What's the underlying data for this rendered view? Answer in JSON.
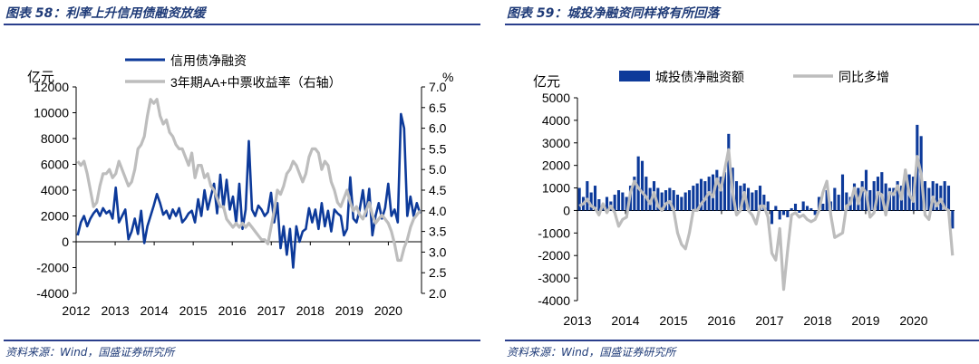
{
  "colors": {
    "primary": "#0d3a9a",
    "secondary": "#bdbdbd",
    "title": "#1f3b78",
    "rule": "#2a3e8c"
  },
  "left": {
    "title": "图表 58：利率上升信用债融资放缓",
    "source": "资料来源：Wind，国盛证券研究所",
    "chart_data": {
      "type": "line",
      "left_unit": "亿元",
      "right_unit": "%",
      "ylim_left": [
        -4000,
        12000
      ],
      "yticks_left": [
        "-4000",
        "-2000",
        "0",
        "2000",
        "4000",
        "6000",
        "8000",
        "10000",
        "12000"
      ],
      "ylim_right": [
        2.0,
        7.0
      ],
      "yticks_right": [
        "2.0",
        "2.5",
        "3.0",
        "3.5",
        "4.0",
        "4.5",
        "5.0",
        "5.5",
        "6.0",
        "6.5",
        "7.0"
      ],
      "x_start": 2012.0,
      "x_end": 2020.85,
      "xticks": [
        "2012",
        "2013",
        "2014",
        "2015",
        "2016",
        "2017",
        "2018",
        "2019",
        "2020"
      ],
      "series": [
        {
          "name": "信用债净融资",
          "axis": "left",
          "style": "line",
          "color": "#0d3a9a",
          "values": [
            500,
            1500,
            2000,
            1200,
            1800,
            2200,
            2500,
            2000,
            2600,
            2200,
            2400,
            1800,
            4200,
            1500,
            2000,
            2500,
            200,
            800,
            1800,
            600,
            2400,
            -100,
            1200,
            2000,
            2800,
            3700,
            3000,
            2100,
            2400,
            1800,
            2500,
            2000,
            2600,
            1500,
            1800,
            2200,
            2400,
            1500,
            3300,
            2000,
            4000,
            2500,
            3500,
            4500,
            2200,
            5200,
            2600,
            4800,
            2500,
            3500,
            1500,
            4500,
            1000,
            2500,
            7800,
            2500,
            2000,
            2800,
            2500,
            2000,
            2300,
            3800,
            1500,
            3000,
            -500,
            1200,
            -1000,
            1000,
            -2000,
            1200,
            0,
            800,
            1000,
            2600,
            1500,
            2500,
            1000,
            3000,
            1200,
            2400,
            800,
            2500,
            2200,
            2000,
            500,
            1000,
            5000,
            1800,
            1500,
            2500,
            4000,
            2000,
            4100,
            500,
            2000,
            3000,
            1800,
            2600,
            4500,
            2000,
            2500,
            1500,
            9900,
            8800,
            2000,
            3500,
            2000,
            3000,
            2200
          ]
        },
        {
          "name": "3年期AA+中票收益率（右轴）",
          "axis": "right",
          "style": "line",
          "color": "#bdbdbd",
          "values": [
            5.2,
            5.1,
            5.2,
            4.9,
            4.5,
            4.1,
            4.2,
            4.6,
            4.9,
            4.9,
            5.0,
            4.8,
            4.9,
            5.2,
            5.0,
            4.8,
            4.6,
            4.7,
            5.0,
            5.5,
            5.6,
            5.8,
            6.3,
            6.7,
            6.6,
            6.7,
            6.3,
            6.1,
            6.2,
            5.9,
            5.8,
            5.6,
            5.5,
            5.5,
            5.3,
            5.1,
            5.4,
            4.8,
            5.1,
            5.1,
            4.8,
            4.9,
            4.6,
            4.5,
            4.3,
            4.1,
            4.1,
            3.8,
            3.7,
            3.6,
            3.7,
            3.6,
            3.7,
            3.6,
            3.7,
            3.6,
            3.5,
            3.4,
            3.3,
            3.3,
            3.2,
            3.6,
            4.0,
            4.5,
            4.4,
            4.6,
            4.9,
            5.0,
            5.2,
            5.1,
            4.9,
            4.7,
            4.9,
            5.3,
            5.5,
            5.5,
            5.4,
            5.0,
            5.2,
            5.1,
            4.7,
            4.5,
            4.2,
            4.1,
            4.3,
            4.5,
            4.2,
            4.0,
            4.1,
            3.9,
            3.8,
            4.0,
            4.2,
            3.9,
            3.7,
            3.8,
            3.9,
            3.8,
            3.7,
            3.5,
            3.2,
            2.8,
            2.8,
            3.1,
            3.3,
            3.6,
            3.8,
            3.9,
            4.0
          ]
        }
      ]
    }
  },
  "right": {
    "title": "图表 59：城投净融资同样将有所回落",
    "source": "资料来源：Wind，国盛证券研究所",
    "chart_data": {
      "type": "bar",
      "left_unit": "亿元",
      "ylim_left": [
        -4000,
        5000
      ],
      "yticks_left": [
        "-4000",
        "-3000",
        "-2000",
        "-1000",
        "0",
        "1000",
        "2000",
        "3000",
        "4000",
        "5000"
      ],
      "x_start": 2013.0,
      "x_end": 2020.85,
      "xticks": [
        "2013",
        "2014",
        "2015",
        "2016",
        "2017",
        "2018",
        "2019",
        "2020"
      ],
      "series": [
        {
          "name": "城投债净融资额",
          "axis": "left",
          "style": "bar",
          "color": "#0d3a9a",
          "values": [
            1000,
            600,
            1300,
            800,
            1100,
            500,
            300,
            600,
            400,
            700,
            900,
            800,
            600,
            1100,
            1500,
            2400,
            2200,
            1500,
            1000,
            1300,
            1000,
            800,
            900,
            1000,
            900,
            700,
            600,
            800,
            900,
            1100,
            1200,
            1400,
            1300,
            1500,
            1600,
            1800,
            1500,
            1700,
            3400,
            1900,
            1300,
            1100,
            1200,
            1000,
            800,
            900,
            1100,
            700,
            400,
            -600,
            200,
            -400,
            -200,
            -300,
            100,
            300,
            -100,
            400,
            200,
            100,
            -200,
            600,
            300,
            900,
            400,
            1000,
            700,
            1600,
            800,
            600,
            1200,
            1000,
            1300,
            1800,
            900,
            1300,
            1500,
            1700,
            1200,
            1000,
            1000,
            1300,
            1100,
            1800,
            1600,
            1500,
            3800,
            3300,
            1300,
            1000,
            1300,
            1200,
            1100,
            1300,
            1100,
            -800
          ]
        },
        {
          "name": "同比多增",
          "axis": "left",
          "style": "line",
          "color": "#bdbdbd",
          "values": [
            200,
            300,
            500,
            200,
            100,
            -200,
            300,
            -100,
            200,
            -100,
            -700,
            -400,
            -300,
            800,
            1300,
            1000,
            800,
            600,
            300,
            800,
            200,
            0,
            300,
            400,
            0,
            -1000,
            -1500,
            -1700,
            -1000,
            0,
            0,
            300,
            500,
            800,
            600,
            1400,
            900,
            1800,
            2700,
            800,
            -200,
            0,
            800,
            0,
            -200,
            -600,
            200,
            200,
            -300,
            -1900,
            -2200,
            -800,
            -3500,
            -1800,
            -200,
            -100,
            -300,
            -200,
            -400,
            -500,
            -400,
            0,
            800,
            1300,
            -200,
            -1200,
            -1100,
            -1000,
            200,
            300,
            1000,
            300,
            1000,
            800,
            -300,
            -100,
            800,
            700,
            -200,
            800,
            700,
            1100,
            500,
            1800,
            700,
            400,
            2400,
            1600,
            -200,
            -400,
            600,
            200,
            500,
            100,
            0,
            -2000
          ]
        }
      ]
    }
  }
}
